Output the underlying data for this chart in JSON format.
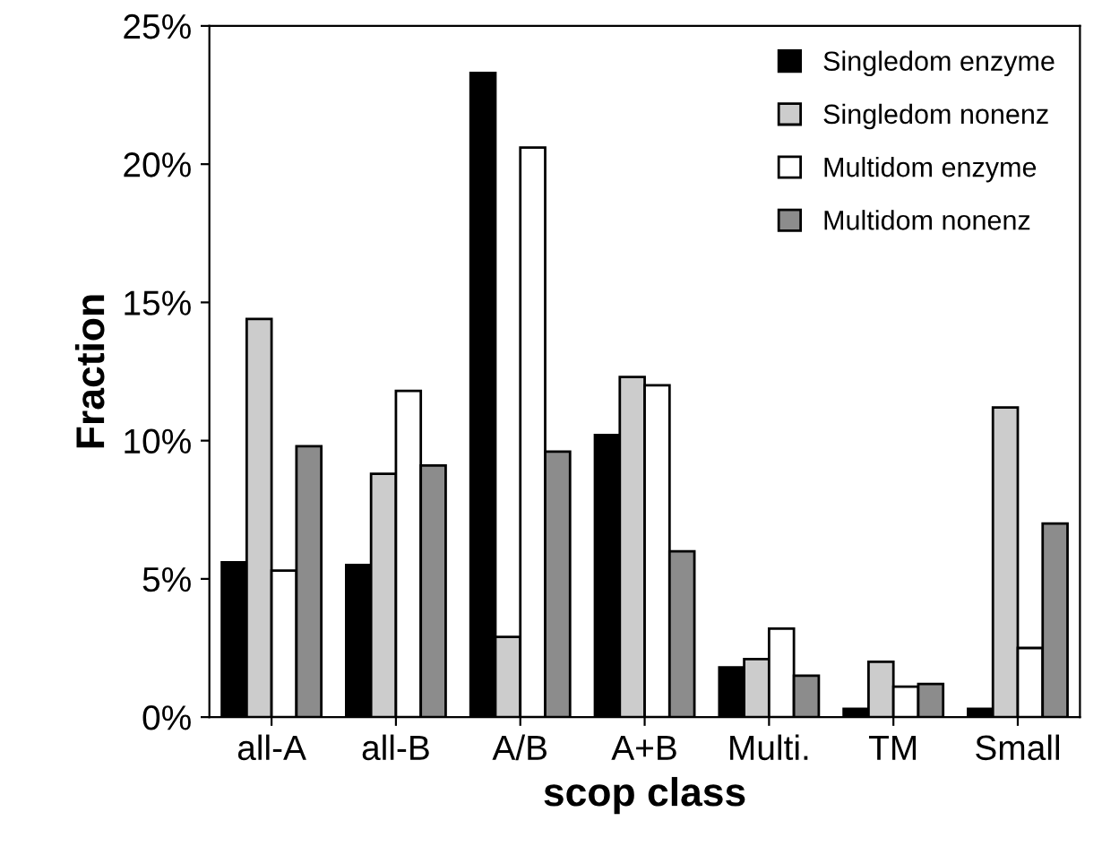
{
  "chart_data": {
    "type": "bar",
    "xlabel": "scop class",
    "ylabel": "Fraction",
    "categories": [
      "all-A",
      "all-B",
      "A/B",
      "A+B",
      "Multi.",
      "TM",
      "Small"
    ],
    "series": [
      {
        "name": "Singledom enzyme",
        "color": "#000000",
        "values": [
          5.6,
          5.5,
          23.3,
          10.2,
          1.8,
          0.3,
          0.3
        ]
      },
      {
        "name": "Singledom nonenz",
        "color": "#cccccc",
        "values": [
          14.4,
          8.8,
          2.9,
          12.3,
          2.1,
          2.0,
          11.2
        ]
      },
      {
        "name": "Multidom enzyme",
        "color": "#ffffff",
        "values": [
          5.3,
          11.8,
          20.6,
          12.0,
          3.2,
          1.1,
          2.5
        ]
      },
      {
        "name": "Multidom nonenz",
        "color": "#8c8c8c",
        "values": [
          9.8,
          9.1,
          9.6,
          6.0,
          1.5,
          1.2,
          7.0
        ]
      }
    ],
    "ylim": [
      0,
      25
    ],
    "yticks": [
      {
        "value": 0,
        "label": "0%"
      },
      {
        "value": 5,
        "label": "5%"
      },
      {
        "value": 10,
        "label": "10%"
      },
      {
        "value": 15,
        "label": "15%"
      },
      {
        "value": 20,
        "label": "20%"
      },
      {
        "value": 25,
        "label": "25%"
      }
    ],
    "grid": false,
    "legend": "top right"
  }
}
